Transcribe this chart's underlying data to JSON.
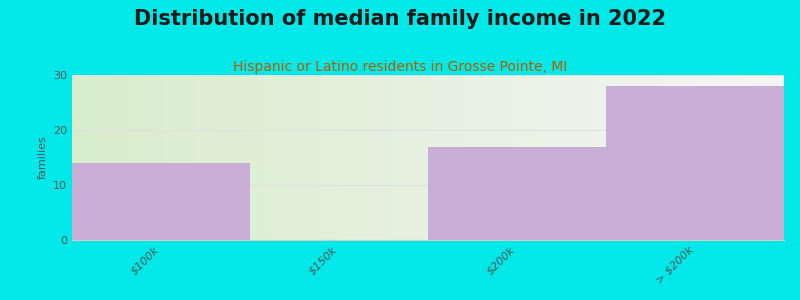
{
  "title": "Distribution of median family income in 2022",
  "subtitle": "Hispanic or Latino residents in Grosse Pointe, MI",
  "categories": [
    "$100k",
    "$150k",
    "$200k",
    "> $200k"
  ],
  "values": [
    14,
    0,
    17,
    28
  ],
  "bar_colors": [
    "#c8aed4",
    "#dde8c0",
    "#c8aed4",
    "#c8aed4"
  ],
  "background_color": "#00e8e8",
  "plot_bg_left": "#d8edcc",
  "plot_bg_right": "#f5f5f5",
  "ylabel": "families",
  "ylim": [
    0,
    30
  ],
  "yticks": [
    0,
    10,
    20,
    30
  ],
  "title_fontsize": 15,
  "subtitle_fontsize": 10,
  "subtitle_color": "#b85c00",
  "grid_color": "#e0e0e0",
  "tick_color": "#555555",
  "bar_width": 1.0,
  "title_color": "#1a1a1a"
}
